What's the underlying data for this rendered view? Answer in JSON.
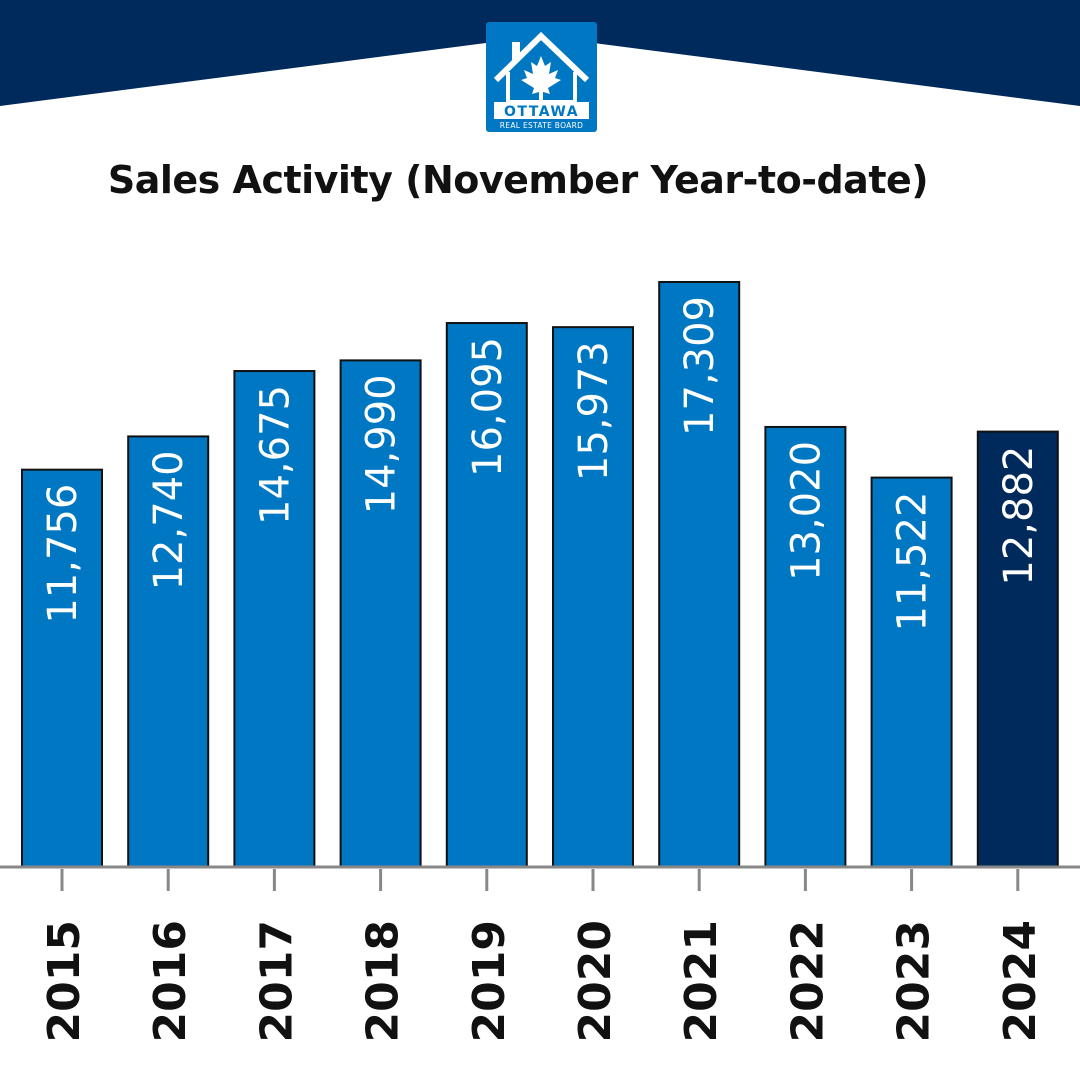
{
  "logo": {
    "line1": "OTTAWA",
    "line2": "REAL ESTATE BOARD",
    "icon": "house-maple-leaf-icon"
  },
  "colors": {
    "banner": "#002a5c",
    "bar": "#0077c2",
    "bar_highlight": "#002a5c",
    "bar_outline": "#111111",
    "axis": "#888888",
    "label_on_bar": "#ffffff"
  },
  "chart_data": {
    "type": "bar",
    "title": "Sales Activity (November Year-to-date)",
    "categories": [
      "2015",
      "2016",
      "2017",
      "2018",
      "2019",
      "2020",
      "2021",
      "2022",
      "2023",
      "2024"
    ],
    "values": [
      11756,
      12740,
      14675,
      14990,
      16095,
      15973,
      17309,
      13020,
      11522,
      12882
    ],
    "data_labels": [
      "11,756",
      "12,740",
      "14,675",
      "14,990",
      "16,095",
      "15,973",
      "17,309",
      "13,020",
      "11,522",
      "12,882"
    ],
    "highlight_category": "2024",
    "ylim": [
      0,
      17309
    ],
    "grid": false,
    "legend": "none"
  }
}
